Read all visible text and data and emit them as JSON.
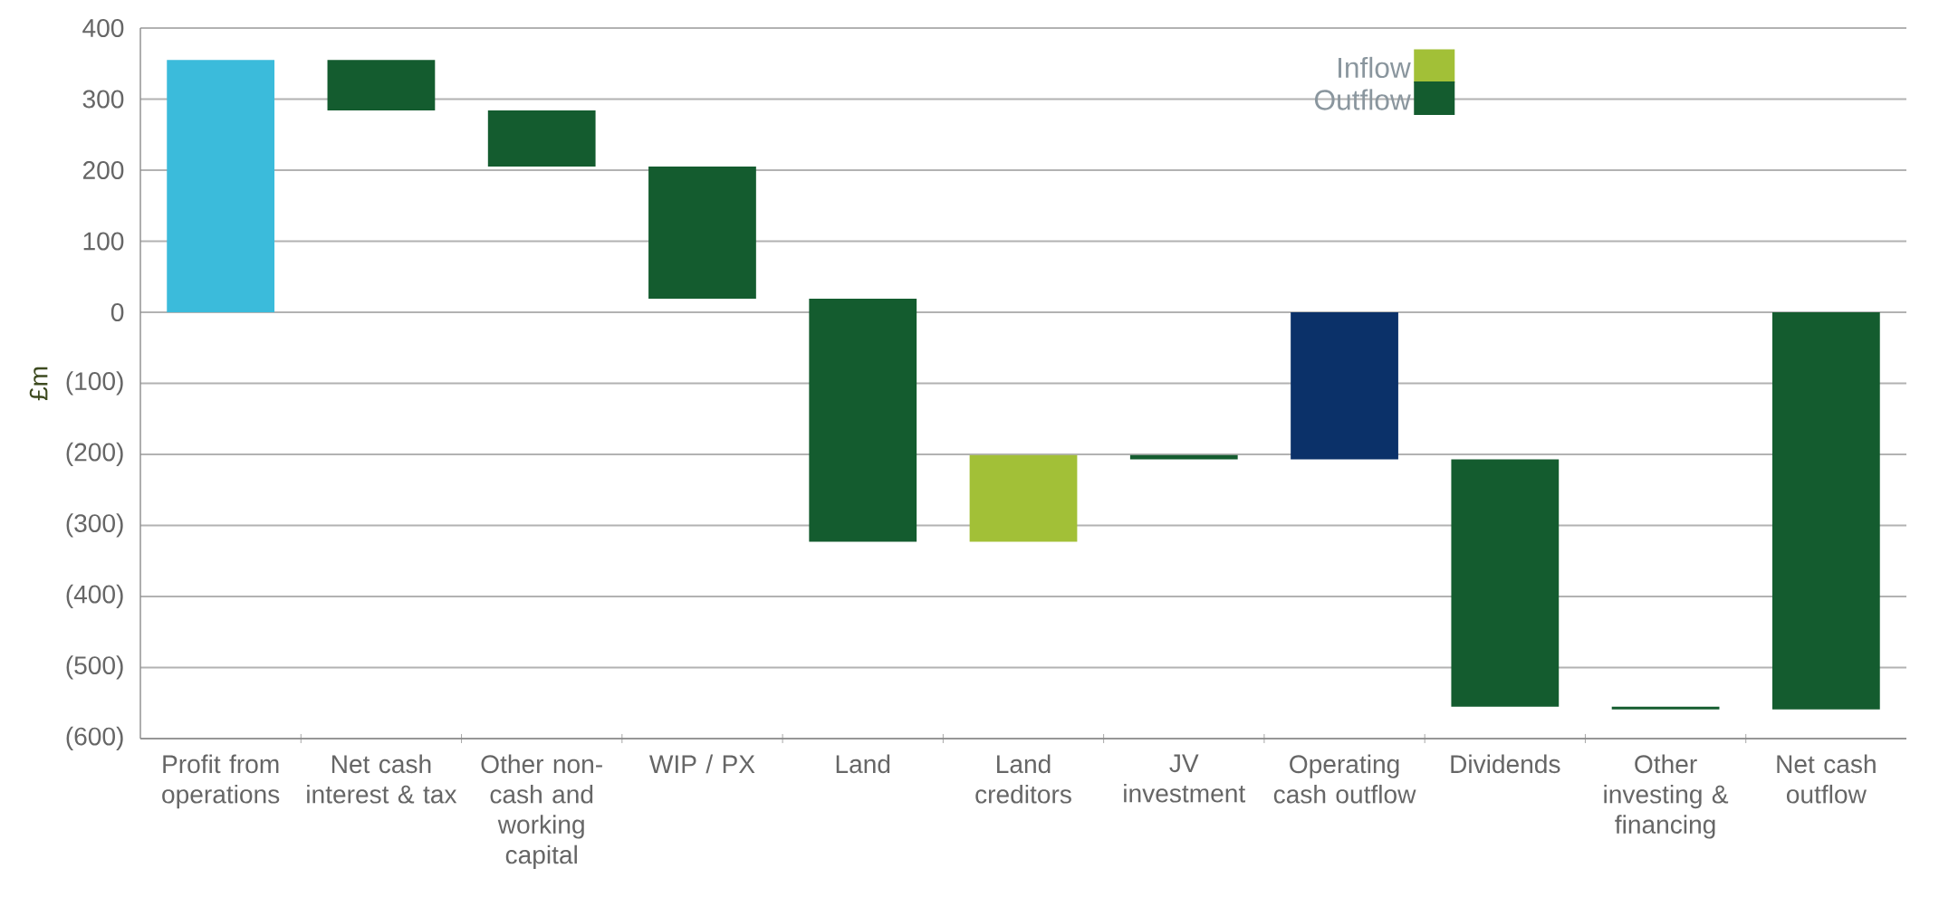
{
  "chart_data": {
    "type": "bar",
    "ylabel": "£m",
    "categories": [
      "Profit from operations",
      "Net cash interest & tax",
      "Other non-cash and working capital",
      "WIP / PX",
      "Land",
      "Land creditors",
      "JV investment",
      "Operating cash outflow",
      "Dividends",
      "Other investing & financing",
      "Net cash outflow"
    ],
    "series": [
      {
        "colors": [
          "#3bbbdb",
          null,
          null,
          null,
          null,
          null,
          null,
          "#0b3169",
          null,
          null,
          null
        ],
        "values": [
          355,
          null,
          null,
          null,
          null,
          null,
          null,
          -207,
          null,
          null,
          null
        ],
        "base": [
          0,
          null,
          null,
          null,
          null,
          null,
          null,
          0,
          null,
          null,
          null
        ]
      },
      {
        "name": "Inflow",
        "color": "#a2c037",
        "values": [
          null,
          null,
          null,
          null,
          null,
          122,
          null,
          null,
          null,
          null,
          null
        ],
        "base": [
          null,
          null,
          null,
          null,
          null,
          -323,
          null,
          null,
          null,
          null,
          null
        ]
      },
      {
        "name": "Outflow",
        "color": "#145c2f",
        "values": [
          null,
          -71,
          -79,
          -186,
          -342,
          null,
          -6,
          null,
          -348,
          -4,
          -559
        ],
        "base": [
          null,
          355,
          284,
          205,
          19,
          null,
          -201,
          null,
          -207,
          -555,
          0
        ]
      }
    ],
    "ylim": [
      -600,
      400
    ],
    "yticks": [
      {
        "value": -600,
        "label": "(600)"
      },
      {
        "value": -500,
        "label": "(500)"
      },
      {
        "value": -400,
        "label": "(400)"
      },
      {
        "value": -300,
        "label": "(300)"
      },
      {
        "value": -200,
        "label": "(200)"
      },
      {
        "value": -100,
        "label": "(100)"
      },
      0,
      100,
      200,
      300,
      400
    ],
    "grid": "y",
    "legend": "top right"
  }
}
